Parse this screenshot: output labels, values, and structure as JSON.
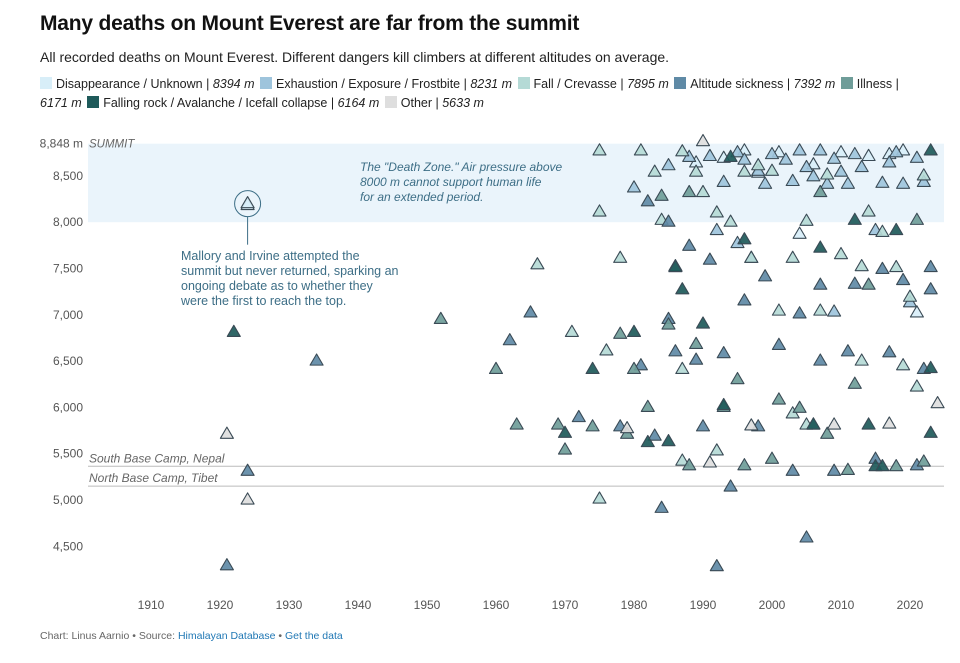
{
  "title": "Many deaths on Mount Everest are far from the summit",
  "subtitle": "All recorded deaths on Mount Everest. Different dangers kill climbers at different altitudes on average.",
  "legend": [
    {
      "cause": "Disappearance / Unknown",
      "altitude": "8394 m",
      "color": "#d8eef8"
    },
    {
      "cause": "Exhaustion / Exposure / Frostbite",
      "altitude": "8231 m",
      "color": "#9ec4dc"
    },
    {
      "cause": "Fall / Crevasse",
      "altitude": "7895 m",
      "color": "#b5dad6"
    },
    {
      "cause": "Altitude sickness",
      "altitude": "7392 m",
      "color": "#5f8aa6"
    },
    {
      "cause": "Illness",
      "altitude": "6171 m",
      "color": "#6f9d99"
    },
    {
      "cause": "Falling rock / Avalanche / Icefall collapse",
      "altitude": "6164 m",
      "color": "#1e5a5a"
    },
    {
      "cause": "Other",
      "altitude": "5633 m",
      "color": "#dedede"
    }
  ],
  "colors": {
    "death_zone_band": "#eaf4fb",
    "ref_line": "#bbbbbb",
    "annotation": "#3d6e86",
    "tri_stroke": "#3a4a55",
    "axis_text": "#555555"
  },
  "annotations": {
    "death_zone": [
      "The \"Death Zone.\" Air pressure above",
      "8000 m cannot support human life",
      "for an extended period."
    ],
    "mallory": [
      "Mallory and Irvine attempted the",
      "summit but never returned, sparking an",
      "ongoing debate as to whether they",
      "were the first to reach the top."
    ]
  },
  "chart_data": {
    "type": "scatter",
    "title": "Many deaths on Mount Everest are far from the summit",
    "xlabel": "",
    "ylabel": "",
    "xlim": [
      1900,
      2025
    ],
    "ylim": [
      4000,
      8848
    ],
    "x_ticks": [
      1910,
      1920,
      1930,
      1940,
      1950,
      1960,
      1970,
      1980,
      1990,
      2000,
      2010,
      2020
    ],
    "y_ticks": [
      {
        "value": 8848,
        "label": "8,848 m"
      },
      {
        "value": 8500,
        "label": "8,500"
      },
      {
        "value": 8000,
        "label": "8,000"
      },
      {
        "value": 7500,
        "label": "7,500"
      },
      {
        "value": 7000,
        "label": "7,000"
      },
      {
        "value": 6500,
        "label": "6,500"
      },
      {
        "value": 6000,
        "label": "6,000"
      },
      {
        "value": 5500,
        "label": "5,500"
      },
      {
        "value": 5000,
        "label": "5,000"
      },
      {
        "value": 4500,
        "label": "4,500"
      }
    ],
    "reference_lines": [
      {
        "value": 8848,
        "label": "SUMMIT"
      },
      {
        "value": 5364,
        "label": "South Base Camp, Nepal"
      },
      {
        "value": 5150,
        "label": "North Base Camp, Tibet"
      }
    ],
    "band": {
      "from": 8000,
      "to": 8848,
      "label": "Death Zone"
    },
    "highlight": {
      "x": 1924,
      "y": 8200,
      "label": "Mallory and Irvine"
    },
    "series": [
      {
        "name": "Disappearance / Unknown",
        "points": [
          [
            1924,
            8190
          ],
          [
            1924,
            8210
          ],
          [
            1989,
            8650
          ],
          [
            1993,
            8700
          ],
          [
            1998,
            8540
          ],
          [
            2001,
            8760
          ],
          [
            2006,
            8630
          ],
          [
            2010,
            8760
          ],
          [
            2014,
            8720
          ],
          [
            2019,
            8780
          ],
          [
            2021,
            7030
          ],
          [
            2004,
            7880
          ],
          [
            1996,
            8780
          ],
          [
            2017,
            8740
          ]
        ]
      },
      {
        "name": "Exhaustion / Exposure / Frostbite",
        "points": [
          [
            1980,
            8380
          ],
          [
            1985,
            8620
          ],
          [
            1988,
            8710
          ],
          [
            1991,
            8720
          ],
          [
            1993,
            8440
          ],
          [
            1995,
            8760
          ],
          [
            1996,
            8680
          ],
          [
            1998,
            8560
          ],
          [
            1999,
            8420
          ],
          [
            2000,
            8740
          ],
          [
            2002,
            8680
          ],
          [
            2003,
            8450
          ],
          [
            2004,
            8780
          ],
          [
            2005,
            8600
          ],
          [
            2006,
            8500
          ],
          [
            2007,
            8780
          ],
          [
            2008,
            8420
          ],
          [
            2009,
            8690
          ],
          [
            2010,
            8550
          ],
          [
            2011,
            8420
          ],
          [
            2012,
            8740
          ],
          [
            2013,
            8600
          ],
          [
            2016,
            8430
          ],
          [
            2017,
            8650
          ],
          [
            2018,
            8760
          ],
          [
            2019,
            8420
          ],
          [
            2021,
            8700
          ],
          [
            2022,
            8440
          ],
          [
            1995,
            7780
          ],
          [
            1992,
            7920
          ],
          [
            2015,
            7920
          ],
          [
            2020,
            7140
          ],
          [
            1997,
            7620
          ],
          [
            2009,
            7040
          ]
        ]
      },
      {
        "name": "Fall / Crevasse",
        "points": [
          [
            1975,
            8780
          ],
          [
            1975,
            8120
          ],
          [
            1966,
            7550
          ],
          [
            1978,
            7620
          ],
          [
            1981,
            8780
          ],
          [
            1983,
            8550
          ],
          [
            1984,
            8030
          ],
          [
            1986,
            7520
          ],
          [
            1987,
            8770
          ],
          [
            1989,
            8550
          ],
          [
            1990,
            8330
          ],
          [
            1992,
            8110
          ],
          [
            1994,
            8010
          ],
          [
            1996,
            8550
          ],
          [
            1997,
            7620
          ],
          [
            1998,
            8620
          ],
          [
            2000,
            8560
          ],
          [
            2001,
            7050
          ],
          [
            2003,
            7620
          ],
          [
            2005,
            8020
          ],
          [
            2007,
            7050
          ],
          [
            2008,
            8520
          ],
          [
            2010,
            7660
          ],
          [
            2013,
            7530
          ],
          [
            2014,
            8120
          ],
          [
            2016,
            7900
          ],
          [
            2018,
            7520
          ],
          [
            2020,
            7200
          ],
          [
            2022,
            8510
          ],
          [
            1976,
            6620
          ],
          [
            1971,
            6820
          ],
          [
            1987,
            6420
          ],
          [
            1992,
            5540
          ],
          [
            2005,
            5820
          ],
          [
            2013,
            6510
          ],
          [
            2019,
            6460
          ],
          [
            1975,
            5020
          ],
          [
            1987,
            5430
          ],
          [
            2021,
            6230
          ],
          [
            2003,
            5940
          ]
        ]
      },
      {
        "name": "Altitude sickness",
        "points": [
          [
            1982,
            8230
          ],
          [
            1985,
            8010
          ],
          [
            1988,
            7750
          ],
          [
            1991,
            7600
          ],
          [
            1996,
            7160
          ],
          [
            1999,
            7420
          ],
          [
            2004,
            7020
          ],
          [
            2007,
            7330
          ],
          [
            2012,
            7340
          ],
          [
            2016,
            7500
          ],
          [
            2019,
            7380
          ],
          [
            2023,
            7520
          ],
          [
            1962,
            6730
          ],
          [
            1965,
            7030
          ],
          [
            1981,
            6460
          ],
          [
            1985,
            6960
          ],
          [
            1986,
            6610
          ],
          [
            1989,
            6520
          ],
          [
            1993,
            6590
          ],
          [
            2001,
            6680
          ],
          [
            2007,
            6510
          ],
          [
            2011,
            6610
          ],
          [
            2017,
            6600
          ],
          [
            2022,
            6420
          ],
          [
            2023,
            7280
          ],
          [
            1984,
            4920
          ],
          [
            1994,
            5150
          ],
          [
            2005,
            4600
          ],
          [
            1992,
            4290
          ],
          [
            1921,
            4300
          ],
          [
            1924,
            5320
          ],
          [
            1934,
            6510
          ],
          [
            1972,
            5900
          ],
          [
            1978,
            5800
          ],
          [
            1983,
            5700
          ],
          [
            1990,
            5800
          ],
          [
            1998,
            5800
          ],
          [
            2003,
            5320
          ],
          [
            2009,
            5320
          ],
          [
            2015,
            5450
          ],
          [
            2021,
            5380
          ]
        ]
      },
      {
        "name": "Illness",
        "points": [
          [
            1960,
            6420
          ],
          [
            1963,
            5820
          ],
          [
            1969,
            5820
          ],
          [
            1974,
            5800
          ],
          [
            1979,
            5720
          ],
          [
            1980,
            6420
          ],
          [
            1982,
            6010
          ],
          [
            1985,
            6900
          ],
          [
            1989,
            6690
          ],
          [
            1993,
            6010
          ],
          [
            1995,
            6310
          ],
          [
            2001,
            6090
          ],
          [
            2004,
            6000
          ],
          [
            2008,
            5720
          ],
          [
            2012,
            6260
          ],
          [
            2018,
            5370
          ],
          [
            2022,
            5420
          ],
          [
            1952,
            6960
          ],
          [
            1970,
            5550
          ],
          [
            1978,
            6800
          ],
          [
            1986,
            7530
          ],
          [
            1988,
            5380
          ],
          [
            1996,
            5380
          ],
          [
            2000,
            5450
          ],
          [
            2006,
            5820
          ],
          [
            2011,
            5330
          ],
          [
            2021,
            8030
          ],
          [
            2014,
            7330
          ],
          [
            2007,
            8330
          ],
          [
            1988,
            8330
          ],
          [
            1984,
            8290
          ]
        ]
      },
      {
        "name": "Falling rock / Avalanche / Icefall collapse",
        "points": [
          [
            1922,
            6820
          ],
          [
            1970,
            5730
          ],
          [
            1974,
            6420
          ],
          [
            1980,
            6820
          ],
          [
            1982,
            5630
          ],
          [
            1985,
            5640
          ],
          [
            1987,
            7280
          ],
          [
            1990,
            6910
          ],
          [
            1993,
            6030
          ],
          [
            1996,
            7820
          ],
          [
            2007,
            7730
          ],
          [
            2006,
            5820
          ],
          [
            2014,
            5820
          ],
          [
            2015,
            5370
          ],
          [
            2016,
            5370
          ],
          [
            2023,
            5730
          ],
          [
            2023,
            8780
          ],
          [
            2012,
            8030
          ],
          [
            2018,
            7920
          ],
          [
            2023,
            6430
          ],
          [
            1986,
            7520
          ],
          [
            1994,
            8710
          ]
        ]
      },
      {
        "name": "Other",
        "points": [
          [
            1921,
            5720
          ],
          [
            1924,
            5010
          ],
          [
            1979,
            5780
          ],
          [
            1991,
            5410
          ],
          [
            1997,
            5810
          ],
          [
            2009,
            5820
          ],
          [
            2017,
            5830
          ],
          [
            2024,
            6050
          ],
          [
            1990,
            8880
          ]
        ]
      }
    ]
  },
  "footer": {
    "credit": "Chart: Linus Aarnio",
    "source_label": "Source:",
    "source_link": "Himalayan Database",
    "separator": "•",
    "data_link": "Get the data"
  }
}
